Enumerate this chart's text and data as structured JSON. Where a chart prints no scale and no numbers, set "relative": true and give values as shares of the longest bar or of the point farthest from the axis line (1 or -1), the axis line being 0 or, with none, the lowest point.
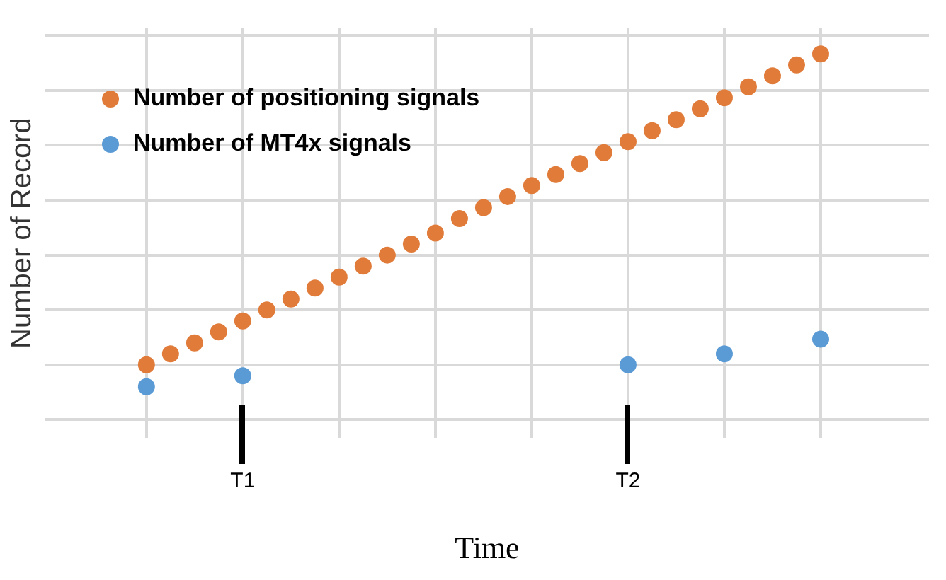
{
  "chart_data": {
    "type": "scatter",
    "relative": true,
    "xlabel": "Time",
    "ylabel": "Number of Record",
    "categories": [
      null,
      null,
      null,
      null,
      "T1",
      null,
      null,
      null,
      null,
      null,
      null,
      null,
      null,
      null,
      null,
      null,
      null,
      null,
      null,
      null,
      "T2",
      null,
      null,
      null,
      null,
      null,
      null,
      null,
      null
    ],
    "series": [
      {
        "name": "Number of positioning signals",
        "color": "#e07b39",
        "values": [
          0.15,
          0.18,
          0.21,
          0.24,
          0.27,
          0.3,
          0.33,
          0.36,
          0.39,
          0.42,
          0.45,
          0.48,
          0.51,
          0.55,
          0.58,
          0.61,
          0.64,
          0.67,
          0.7,
          0.73,
          0.76,
          0.79,
          0.82,
          0.85,
          0.88,
          0.91,
          0.94,
          0.97,
          1.0
        ]
      },
      {
        "name": "Number of MT4x signals",
        "color": "#5b9bd5",
        "values": [
          0.09,
          null,
          null,
          null,
          0.12,
          null,
          null,
          null,
          null,
          null,
          null,
          null,
          null,
          null,
          null,
          null,
          null,
          null,
          null,
          null,
          0.15,
          null,
          null,
          null,
          0.18,
          null,
          null,
          null,
          0.22
        ]
      }
    ],
    "grid": true,
    "legend": "top left",
    "marker": "circle"
  }
}
